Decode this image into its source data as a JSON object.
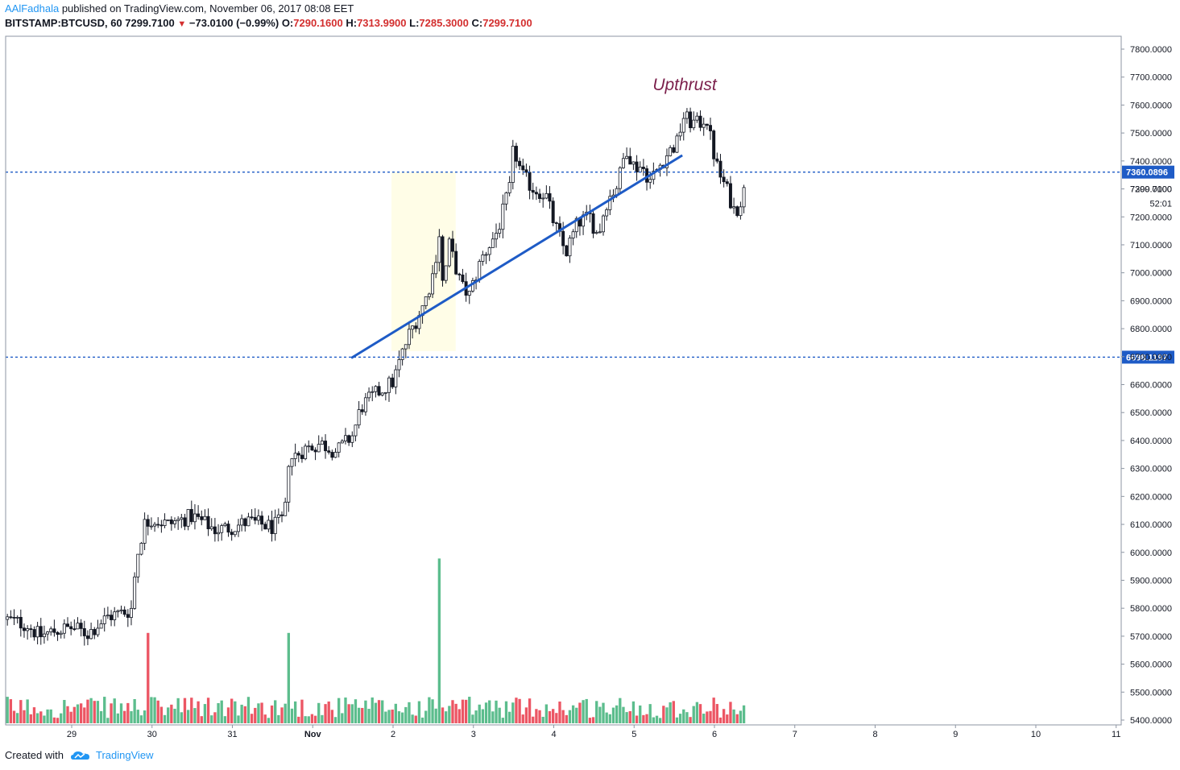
{
  "header": {
    "author": "AAlFadhala",
    "published_text": " published on TradingView.com, November 06, 2017 08:08 EET",
    "symbol": "BITSTAMP:BTCUSD, 60",
    "last": "7299.7100",
    "change": "−73.0100 (−0.99%)",
    "o_label": "O:",
    "o_value": "7290.1600",
    "h_label": "H:",
    "h_value": "7313.9900",
    "l_label": "L:",
    "l_value": "7285.3000",
    "c_label": "C:",
    "c_value": "7299.7100"
  },
  "footer": {
    "created_with": "Created with",
    "brand": "TradingView"
  },
  "colors": {
    "up": "#53b987",
    "down": "#eb4d5c",
    "candle_up": "#ffffff",
    "candle_down": "#131722",
    "line_blue": "#1e5bc6",
    "hline": "#1e5bc6",
    "highlight": "#fffde7"
  },
  "chart_data": {
    "type": "candlestick",
    "title": "",
    "annotation": "Upthrust",
    "ylim": [
      5400,
      7840
    ],
    "y_ticks": [
      "5400.0000",
      "5500.0000",
      "5600.0000",
      "5700.0000",
      "5800.0000",
      "5900.0000",
      "6000.0000",
      "6100.0000",
      "6200.0000",
      "6300.0000",
      "6400.0000",
      "6500.0000",
      "6600.0000",
      "6700.0000",
      "6800.0000",
      "6900.0000",
      "7000.0000",
      "7100.0000",
      "7200.0000",
      "7300.0000",
      "7400.0000",
      "7500.0000",
      "7600.0000",
      "7700.0000",
      "7800.0000"
    ],
    "x_ticks": [
      {
        "label": "29",
        "day": 29
      },
      {
        "label": "30",
        "day": 30
      },
      {
        "label": "31",
        "day": 31
      },
      {
        "label": "Nov",
        "day": 32
      },
      {
        "label": "2",
        "day": 33
      },
      {
        "label": "3",
        "day": 34
      },
      {
        "label": "4",
        "day": 35
      },
      {
        "label": "5",
        "day": 36
      },
      {
        "label": "6",
        "day": 37
      },
      {
        "label": "7",
        "day": 38
      },
      {
        "label": "8",
        "day": 39
      },
      {
        "label": "9",
        "day": 40
      },
      {
        "label": "10",
        "day": 41
      },
      {
        "label": "11",
        "day": 42
      }
    ],
    "horizontal_lines": [
      {
        "value": 7360.0896,
        "label": "7360.0896"
      },
      {
        "value": 6698.1197,
        "label": "6698.1197"
      }
    ],
    "last_price": {
      "value": 7299.71,
      "label": "7299.7100",
      "countdown": "52:01"
    },
    "trendline": {
      "start": {
        "day": 32.48,
        "price": 6695
      },
      "end": {
        "day": 36.6,
        "price": 7420
      }
    },
    "highlight": {
      "start_day": 32.98,
      "end_day": 33.78,
      "low": 6720,
      "high": 7360
    },
    "price_path": [
      [
        28.2,
        5760
      ],
      [
        28.45,
        5740
      ],
      [
        28.6,
        5700
      ],
      [
        28.8,
        5720
      ],
      [
        29.0,
        5730
      ],
      [
        29.2,
        5710
      ],
      [
        29.45,
        5770
      ],
      [
        29.7,
        5790
      ],
      [
        29.75,
        5800
      ],
      [
        29.8,
        5970
      ],
      [
        29.9,
        6100
      ],
      [
        30.0,
        6120
      ],
      [
        30.2,
        6100
      ],
      [
        30.5,
        6130
      ],
      [
        30.8,
        6080
      ],
      [
        31.0,
        6090
      ],
      [
        31.2,
        6110
      ],
      [
        31.5,
        6090
      ],
      [
        31.65,
        6120
      ],
      [
        31.7,
        6330
      ],
      [
        31.9,
        6370
      ],
      [
        32.1,
        6390
      ],
      [
        32.3,
        6360
      ],
      [
        32.5,
        6420
      ],
      [
        32.6,
        6520
      ],
      [
        32.8,
        6570
      ],
      [
        33.0,
        6610
      ],
      [
        33.1,
        6700
      ],
      [
        33.2,
        6780
      ],
      [
        33.4,
        6900
      ],
      [
        33.5,
        7000
      ],
      [
        33.58,
        7150
      ],
      [
        33.62,
        6950
      ],
      [
        33.7,
        7100
      ],
      [
        33.85,
        6950
      ],
      [
        33.95,
        6920
      ],
      [
        34.1,
        7050
      ],
      [
        34.3,
        7150
      ],
      [
        34.45,
        7300
      ],
      [
        34.5,
        7450
      ],
      [
        34.6,
        7350
      ],
      [
        34.75,
        7300
      ],
      [
        34.9,
        7280
      ],
      [
        35.0,
        7180
      ],
      [
        35.15,
        7070
      ],
      [
        35.3,
        7180
      ],
      [
        35.45,
        7200
      ],
      [
        35.55,
        7130
      ],
      [
        35.65,
        7250
      ],
      [
        35.8,
        7320
      ],
      [
        35.9,
        7450
      ],
      [
        36.0,
        7380
      ],
      [
        36.1,
        7380
      ],
      [
        36.2,
        7330
      ],
      [
        36.4,
        7420
      ],
      [
        36.55,
        7470
      ],
      [
        36.6,
        7560
      ],
      [
        36.7,
        7540
      ],
      [
        36.8,
        7530
      ],
      [
        36.9,
        7560
      ],
      [
        36.97,
        7450
      ],
      [
        37.05,
        7360
      ],
      [
        37.15,
        7300
      ],
      [
        37.25,
        7220
      ],
      [
        37.3,
        7240
      ],
      [
        37.38,
        7300
      ]
    ],
    "volume_spikes": [
      {
        "day": 29.95,
        "vol": 0.34,
        "dir": "up"
      },
      {
        "day": 31.7,
        "vol": 0.34,
        "dir": "up"
      },
      {
        "day": 33.58,
        "vol": 0.62,
        "dir": "down"
      }
    ]
  }
}
